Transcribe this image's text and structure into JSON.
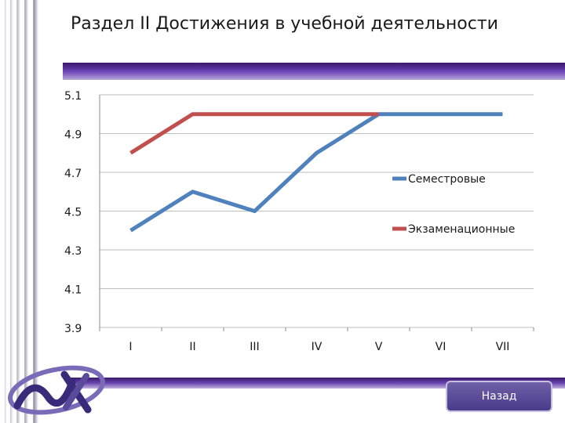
{
  "page": {
    "title": "Раздел II Достижения в учебной деятельности"
  },
  "nav": {
    "back_label": "Назад"
  },
  "colors": {
    "frame_accent": "#5a32a0",
    "button_bg": "#4a3a8a"
  },
  "icons": {
    "logo": "school-logo-icon"
  },
  "chart_data": {
    "type": "line",
    "title": "",
    "xlabel": "",
    "ylabel": "",
    "categories": [
      "I",
      "II",
      "III",
      "IV",
      "V",
      "VI",
      "VII"
    ],
    "ylim": [
      3.9,
      5.1
    ],
    "yticks": [
      3.9,
      4.1,
      4.3,
      4.5,
      4.7,
      4.9,
      5.1
    ],
    "ytick_labels": [
      "3.9",
      "4.1",
      "4.3",
      "4.5",
      "4.7",
      "4.9",
      "5.1"
    ],
    "grid": true,
    "legend": "right",
    "series": [
      {
        "name": "Семестровые",
        "color": "#4f81bd",
        "values": [
          4.4,
          4.6,
          4.5,
          4.8,
          5.0,
          5.0,
          5.0
        ]
      },
      {
        "name": "Экзаменационные",
        "color": "#c0504d",
        "values": [
          4.8,
          5.0,
          5.0,
          5.0,
          5.0,
          null,
          null
        ]
      }
    ]
  }
}
